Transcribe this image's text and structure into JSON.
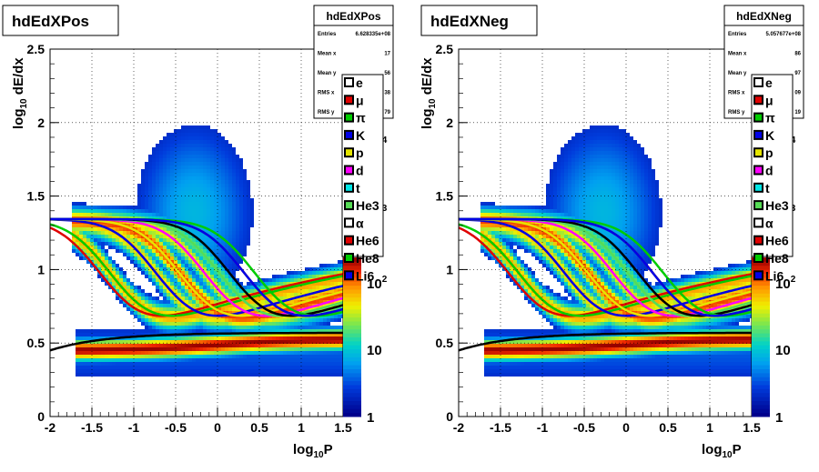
{
  "chart_data": [
    {
      "type": "heatmap",
      "title": "hdEdXPos",
      "xlabel_main": "log",
      "xlabel_sub": "10",
      "xlabel_tail": "P",
      "ylabel_main": "log",
      "ylabel_sub": "10",
      "ylabel_tail": " dE/dx",
      "xlim": [
        -2,
        1.5
      ],
      "ylim": [
        0,
        2.5
      ],
      "x_ticks": [
        "-2",
        "-1.5",
        "-1",
        "-0.5",
        "0",
        "0.5",
        "1",
        "1.5"
      ],
      "y_ticks": [
        "0",
        "0.5",
        "1",
        "1.5",
        "2",
        "2.5"
      ],
      "z_ticks": [
        "1",
        "10",
        "10",
        "10",
        "10"
      ],
      "z_exponents": [
        "",
        "",
        "2",
        "3",
        "4"
      ],
      "stats": {
        "name": "hdEdXPos",
        "rows": [
          {
            "label": "Entries",
            "value": "6.628335e+08"
          },
          {
            "label": "Mean x",
            "value": "17"
          },
          {
            "label": "Mean y",
            "value": "56"
          },
          {
            "label": "RMS x",
            "value": "38"
          },
          {
            "label": "RMS y",
            "value": "79"
          }
        ]
      }
    },
    {
      "type": "heatmap",
      "title": "hdEdXNeg",
      "xlabel_main": "log",
      "xlabel_sub": "10",
      "xlabel_tail": "P",
      "ylabel_main": "log",
      "ylabel_sub": "10",
      "ylabel_tail": " dE/dx",
      "xlim": [
        -2,
        1.5
      ],
      "ylim": [
        0,
        2.5
      ],
      "x_ticks": [
        "-2",
        "-1.5",
        "-1",
        "-0.5",
        "0",
        "0.5",
        "1",
        "1.5"
      ],
      "y_ticks": [
        "0",
        "0.5",
        "1",
        "1.5",
        "2",
        "2.5"
      ],
      "z_ticks": [
        "1",
        "10",
        "10",
        "10",
        "10"
      ],
      "z_exponents": [
        "",
        "",
        "2",
        "3",
        "4"
      ],
      "stats": {
        "name": "hdEdXNeg",
        "rows": [
          {
            "label": "Entries",
            "value": "5.057677e+08"
          },
          {
            "label": "Mean x",
            "value": "86"
          },
          {
            "label": "Mean y",
            "value": "97"
          },
          {
            "label": "RMS x",
            "value": "09"
          },
          {
            "label": "RMS y",
            "value": "19"
          }
        ]
      }
    }
  ],
  "legend": [
    {
      "label": "e",
      "color": "#000000"
    },
    {
      "label": "μ",
      "color": "#e00000"
    },
    {
      "label": "π",
      "color": "#00cc00"
    },
    {
      "label": "K",
      "color": "#0000e6"
    },
    {
      "label": "p",
      "color": "#e6e600"
    },
    {
      "label": "d",
      "color": "#ff00ff"
    },
    {
      "label": "t",
      "color": "#00e6e6"
    },
    {
      "label": "He3",
      "color": "#55dd55"
    },
    {
      "label": "α",
      "color": "#000000"
    },
    {
      "label": "He6",
      "color": "#e00000"
    },
    {
      "label": "He8",
      "color": "#00cc00"
    },
    {
      "label": "Li6",
      "color": "#0000e6"
    }
  ]
}
